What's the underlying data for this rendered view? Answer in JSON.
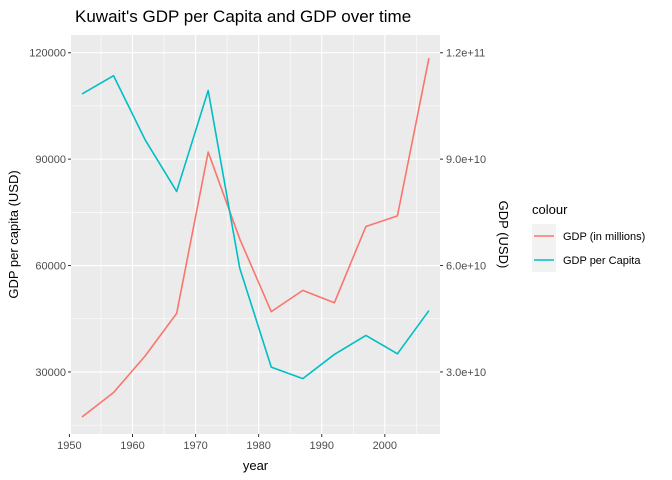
{
  "chart_data": {
    "type": "line",
    "title": "Kuwait's GDP per Capita and GDP over time",
    "xlabel": "year",
    "ylabel": "GDP per capita (USD)",
    "y2label": "GDP (USD)",
    "xlim": [
      1950.25,
      2008.75
    ],
    "ylim": [
      12500,
      125000
    ],
    "y2lim": [
      12500000000,
      125000000000
    ],
    "x_ticks": [
      1950,
      1960,
      1970,
      1980,
      1990,
      2000
    ],
    "x_tick_labels": [
      "1950",
      "1960",
      "1970",
      "1980",
      "1990",
      "2000"
    ],
    "y_ticks": [
      30000,
      60000,
      90000,
      120000
    ],
    "y_tick_labels": [
      "30000",
      "60000",
      "90000",
      "120000"
    ],
    "y2_ticks": [
      30000000000,
      60000000000,
      90000000000,
      120000000000
    ],
    "y2_tick_labels": [
      "3.0e+10",
      "6.0e+10",
      "9.0e+10",
      "1.2e+11"
    ],
    "grid": true,
    "legend": {
      "title": "colour",
      "placement": "right",
      "entries": [
        "GDP (in millions)",
        "GDP per Capita"
      ]
    },
    "series": [
      {
        "name": "GDP (in millions)",
        "color": "#F8766D",
        "axis": "y",
        "x": [
          1952,
          1957,
          1962,
          1967,
          1972,
          1977,
          1982,
          1987,
          1992,
          1997,
          2002,
          2007
        ],
        "values": [
          17300,
          24200,
          34500,
          46500,
          92000,
          67500,
          47000,
          53000,
          49500,
          71000,
          74000,
          118500
        ]
      },
      {
        "name": "GDP per Capita",
        "color": "#00BFC4",
        "axis": "y",
        "x": [
          1952,
          1957,
          1962,
          1967,
          1972,
          1977,
          1982,
          1987,
          1992,
          1997,
          2002,
          2007
        ],
        "values": [
          108382,
          113523,
          95458,
          80895,
          109348,
          59265,
          31354,
          28118,
          34933,
          40301,
          35110,
          47307
        ]
      }
    ]
  }
}
